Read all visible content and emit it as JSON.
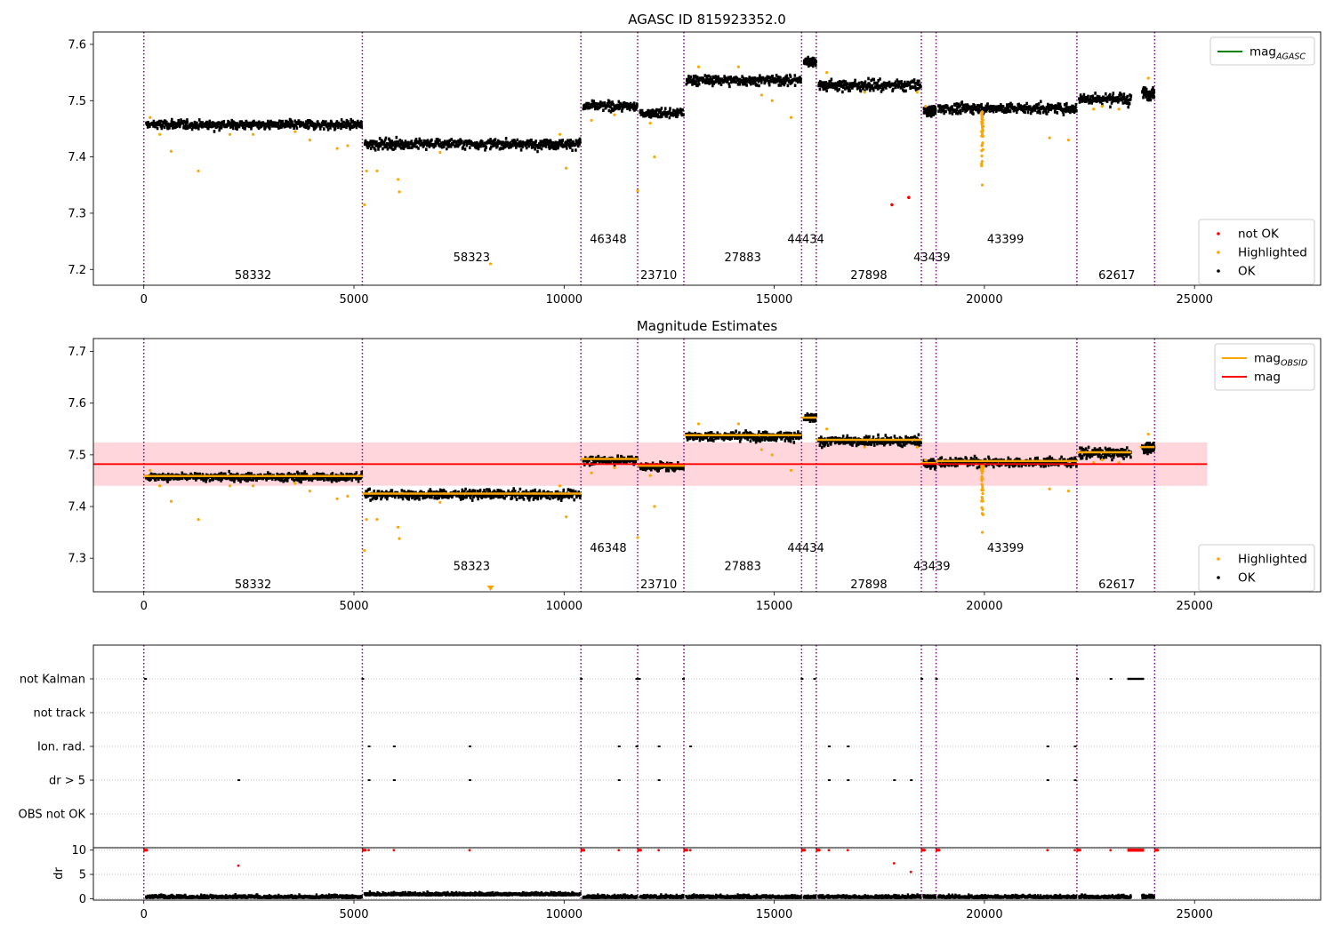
{
  "chart_data": [
    {
      "id": "p1",
      "type": "scatter",
      "title": "AGASC ID 815923352.0",
      "xlim": [
        -1200,
        28000
      ],
      "ylim": [
        7.172,
        7.622
      ],
      "xticks": [
        0,
        5000,
        10000,
        15000,
        20000,
        25000
      ],
      "yticks": [
        7.2,
        7.3,
        7.4,
        7.5,
        7.6
      ],
      "legend_top": {
        "placement": "top-right",
        "entries": [
          {
            "kind": "line",
            "color": "#008000",
            "label": "mag",
            "sub": "AGASC"
          }
        ]
      },
      "legend_bottom": {
        "placement": "bottom-right",
        "entries": [
          {
            "kind": "dot",
            "color": "#ff0000",
            "label": "not OK"
          },
          {
            "kind": "dot",
            "color": "#ffa500",
            "label": "Highlighted"
          },
          {
            "kind": "dot",
            "color": "#000000",
            "label": "OK"
          }
        ]
      },
      "obsid_labels": [
        {
          "text": "58332",
          "x": 2600,
          "y": 7.19
        },
        {
          "text": "58323",
          "x": 7800,
          "y": 7.222
        },
        {
          "text": "46348",
          "x": 11050,
          "y": 7.254
        },
        {
          "text": "23710",
          "x": 12250,
          "y": 7.19
        },
        {
          "text": "27883",
          "x": 14250,
          "y": 7.222
        },
        {
          "text": "44434",
          "x": 15750,
          "y": 7.254
        },
        {
          "text": "27898",
          "x": 17250,
          "y": 7.19
        },
        {
          "text": "43439",
          "x": 18750,
          "y": 7.222
        },
        {
          "text": "43399",
          "x": 20500,
          "y": 7.254
        },
        {
          "text": "62617",
          "x": 23150,
          "y": 7.19
        }
      ],
      "not_ok_points": [
        [
          17800,
          7.315
        ],
        [
          18200,
          7.328
        ]
      ]
    },
    {
      "id": "p2",
      "type": "scatter",
      "title": "Magnitude Estimates",
      "xlim": [
        -1200,
        28000
      ],
      "ylim": [
        7.235,
        7.725
      ],
      "xticks": [
        0,
        5000,
        10000,
        15000,
        20000,
        25000
      ],
      "yticks": [
        7.3,
        7.4,
        7.5,
        7.6,
        7.7
      ],
      "mag_line": 7.482,
      "mag_band": [
        7.44,
        7.524
      ],
      "mag_line_xrange": [
        -1200,
        25300
      ],
      "legend_top": {
        "placement": "top-right",
        "entries": [
          {
            "kind": "line",
            "color": "#ffa500",
            "label": "mag",
            "sub": "OBSID"
          },
          {
            "kind": "line",
            "color": "#ff0000",
            "label": "mag",
            "sub": ""
          }
        ]
      },
      "legend_bottom": {
        "placement": "bottom-right",
        "entries": [
          {
            "kind": "dot",
            "color": "#ffa500",
            "label": "Highlighted"
          },
          {
            "kind": "dot",
            "color": "#000000",
            "label": "OK"
          }
        ]
      },
      "obsid_labels": [
        {
          "text": "58332",
          "x": 2600,
          "y": 7.25
        },
        {
          "text": "58323",
          "x": 7800,
          "y": 7.285
        },
        {
          "text": "46348",
          "x": 11050,
          "y": 7.32
        },
        {
          "text": "23710",
          "x": 12250,
          "y": 7.25
        },
        {
          "text": "27883",
          "x": 14250,
          "y": 7.285
        },
        {
          "text": "44434",
          "x": 15750,
          "y": 7.32
        },
        {
          "text": "27898",
          "x": 17250,
          "y": 7.25
        },
        {
          "text": "43439",
          "x": 18750,
          "y": 7.285
        },
        {
          "text": "43399",
          "x": 20500,
          "y": 7.32
        },
        {
          "text": "62617",
          "x": 23150,
          "y": 7.25
        }
      ]
    },
    {
      "id": "p3",
      "type": "scatter",
      "xlim": [
        -1200,
        28000
      ],
      "flag_labels": [
        "not Kalman",
        "not track",
        "Ion. rad.",
        "dr > 5",
        "OBS not OK"
      ],
      "flag_points": {
        "not Kalman": [
          30,
          5200,
          10400,
          11720,
          11780,
          12830,
          15650,
          15950,
          18500,
          18850,
          22200,
          23000
        ],
        "not track": [],
        "Ion. rad.": [
          5350,
          5950,
          7750,
          11300,
          11720,
          12250,
          13000,
          16300,
          16750,
          21500,
          22150
        ],
        "dr > 5": [
          2250,
          5350,
          5950,
          7750,
          11300,
          12250,
          16300,
          16750,
          17850,
          18250,
          21500,
          22150
        ]
      },
      "not_kalman_run": [
        23400,
        23800
      ],
      "dr_ylim": [
        -0.3,
        10.5
      ],
      "dr_yticks": [
        0,
        5,
        10
      ],
      "dr_ylabel": "dr",
      "dr_red_points": [
        [
          2250,
          6.8
        ],
        [
          17850,
          7.3
        ],
        [
          18250,
          5.5
        ],
        [
          5350,
          10
        ],
        [
          5950,
          10
        ],
        [
          7750,
          10
        ],
        [
          11300,
          10
        ],
        [
          12250,
          10
        ],
        [
          13000,
          10
        ],
        [
          16300,
          10
        ],
        [
          16750,
          10
        ],
        [
          21500,
          10
        ],
        [
          22150,
          10
        ],
        [
          23000,
          10
        ]
      ],
      "dr_red_run": [
        23400,
        23800
      ]
    }
  ],
  "obsids": [
    {
      "id": "58332",
      "start": 0,
      "end": 5200,
      "mag": 7.459,
      "spread": 0.0055
    },
    {
      "id": "58323",
      "start": 5200,
      "end": 10400,
      "mag": 7.425,
      "spread": 0.006
    },
    {
      "id": "46348",
      "start": 10400,
      "end": 11750,
      "mag": 7.492,
      "spread": 0.0055
    },
    {
      "id": "23710",
      "start": 11750,
      "end": 12850,
      "mag": 7.479,
      "spread": 0.0055
    },
    {
      "id": "27883",
      "start": 12850,
      "end": 15650,
      "mag": 7.538,
      "spread": 0.006
    },
    {
      "id": "44434",
      "start": 15650,
      "end": 16000,
      "mag": 7.572,
      "spread": 0.005
    },
    {
      "id": "27898",
      "start": 16000,
      "end": 18500,
      "mag": 7.529,
      "spread": 0.0065
    },
    {
      "id": "43439",
      "start": 18500,
      "end": 18850,
      "mag": 7.484,
      "spread": 0.006
    },
    {
      "id": "43399",
      "start": 18850,
      "end": 22200,
      "mag": 7.488,
      "spread": 0.006
    },
    {
      "id": "62617",
      "start": 22200,
      "end": 23500,
      "mag": 7.505,
      "spread": 0.007
    },
    {
      "id": "",
      "start": 23700,
      "end": 24050,
      "mag": 7.515,
      "spread": 0.007
    }
  ],
  "boundaries": [
    0,
    5200,
    10400,
    11750,
    12850,
    15650,
    16000,
    18500,
    18850,
    22200,
    24050
  ],
  "colors": {
    "boundary": "#800080",
    "ok": "#000000",
    "highlighted": "#ffa500",
    "not_ok": "#ff0000",
    "mag_band": "#ffd6dc",
    "mag_line": "#ff0000",
    "grid": "#b0b0b0"
  }
}
